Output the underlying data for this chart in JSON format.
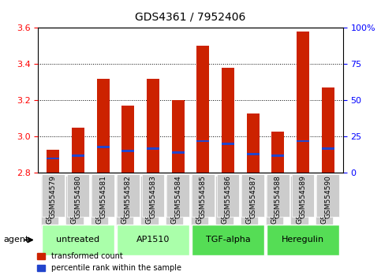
{
  "title": "GDS4361 / 7952406",
  "samples": [
    "GSM554579",
    "GSM554580",
    "GSM554581",
    "GSM554582",
    "GSM554583",
    "GSM554584",
    "GSM554585",
    "GSM554586",
    "GSM554587",
    "GSM554588",
    "GSM554589",
    "GSM554590"
  ],
  "red_values": [
    2.93,
    3.05,
    3.32,
    3.17,
    3.32,
    3.2,
    3.5,
    3.38,
    3.13,
    3.03,
    3.58,
    3.27
  ],
  "blue_values": [
    2.86,
    2.88,
    2.92,
    2.9,
    2.92,
    2.9,
    2.96,
    2.94,
    2.89,
    2.88,
    2.96,
    2.92
  ],
  "blue_pct": [
    10,
    12,
    18,
    15,
    17,
    14,
    22,
    20,
    13,
    12,
    22,
    17
  ],
  "ylim": [
    2.8,
    3.6
  ],
  "yticks": [
    2.8,
    3.0,
    3.2,
    3.4,
    3.6
  ],
  "y2ticks": [
    0,
    25,
    50,
    75,
    100
  ],
  "y2labels": [
    "0",
    "25",
    "50",
    "75",
    "100%"
  ],
  "bar_color": "#cc2200",
  "blue_color": "#2244cc",
  "groups": [
    {
      "label": "untreated",
      "start": 0,
      "end": 2,
      "color": "#aaffaa"
    },
    {
      "label": "AP1510",
      "start": 3,
      "end": 5,
      "color": "#aaffaa"
    },
    {
      "label": "TGF-alpha",
      "start": 6,
      "end": 8,
      "color": "#55dd55"
    },
    {
      "label": "Heregulin",
      "start": 9,
      "end": 11,
      "color": "#55dd55"
    }
  ],
  "agent_label": "agent",
  "legend_red": "transformed count",
  "legend_blue": "percentile rank within the sample",
  "bar_width": 0.5,
  "tick_label_color": "#888888",
  "y_axis_color": "red",
  "y2_axis_color": "blue",
  "grid_color": "black",
  "background_plot": "white",
  "background_xticklabel": "#cccccc"
}
